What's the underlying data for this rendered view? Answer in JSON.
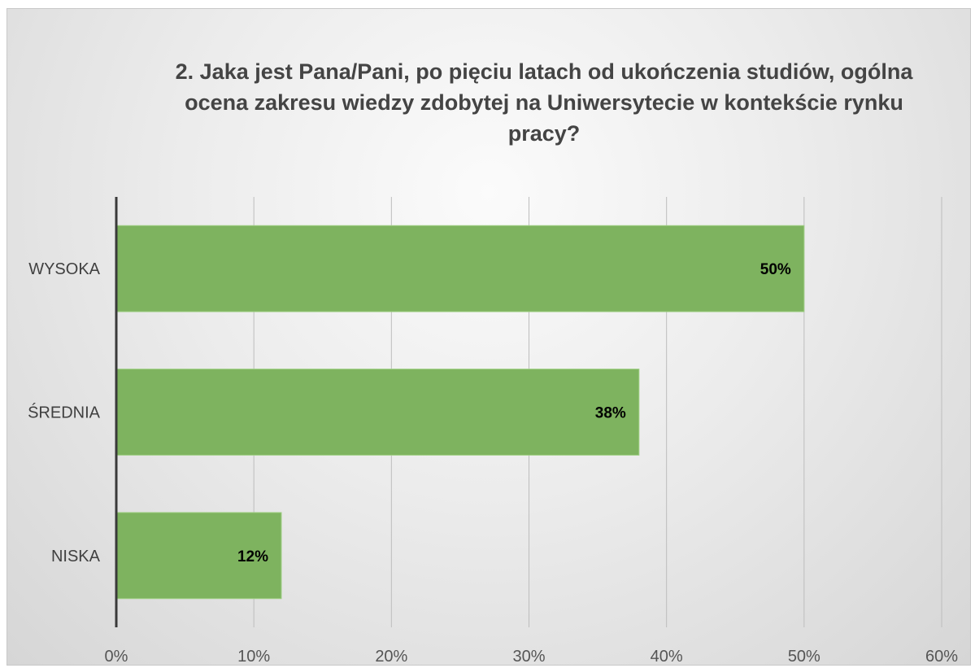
{
  "chart_data": {
    "type": "bar",
    "orientation": "horizontal",
    "title": "2. Jaka jest Pana/Pani, po pięciu latach od ukończenia studiów, ogólna ocena zakresu wiedzy zdobytej na Uniwersytecie w kontekście rynku pracy?",
    "categories": [
      "WYSOKA",
      "ŚREDNIA",
      "NISKA"
    ],
    "values": [
      50,
      38,
      12
    ],
    "data_labels": [
      "50%",
      "38%",
      "12%"
    ],
    "xlim": [
      0,
      60
    ],
    "x_ticks": [
      "0%",
      "10%",
      "20%",
      "30%",
      "40%",
      "50%",
      "60%"
    ],
    "grid": true,
    "bar_color": "#7eb35f",
    "legend": "none"
  }
}
